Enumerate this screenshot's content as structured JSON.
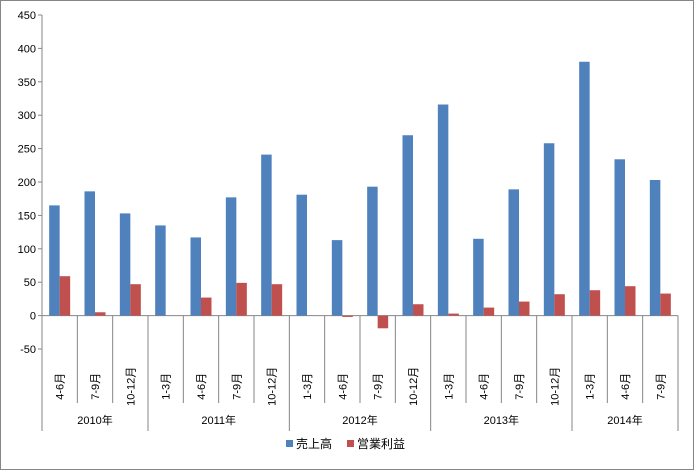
{
  "chart_data": {
    "type": "bar",
    "periods": [
      {
        "year": "2010年",
        "quarters": [
          "4-6月",
          "7-9月",
          "10-12月"
        ]
      },
      {
        "year": "2011年",
        "quarters": [
          "1-3月",
          "4-6月",
          "7-9月",
          "10-12月"
        ]
      },
      {
        "year": "2012年",
        "quarters": [
          "1-3月",
          "4-6月",
          "7-9月",
          "10-12月"
        ]
      },
      {
        "year": "2013年",
        "quarters": [
          "1-3月",
          "4-6月",
          "7-9月",
          "10-12月"
        ]
      },
      {
        "year": "2014年",
        "quarters": [
          "1-3月",
          "4-6月",
          "7-9月"
        ]
      }
    ],
    "series": [
      {
        "name": "売上高",
        "color": "#4F81BD",
        "values": [
          165,
          186,
          153,
          135,
          117,
          177,
          241,
          181,
          113,
          193,
          270,
          316,
          115,
          189,
          258,
          380,
          234,
          203
        ]
      },
      {
        "name": "営業利益",
        "color": "#C0504D",
        "values": [
          59,
          5,
          47,
          0,
          27,
          49,
          47,
          0,
          -2,
          -19,
          17,
          3,
          12,
          21,
          32,
          38,
          44,
          33
        ]
      }
    ],
    "yticks": [
      -50,
      0,
      50,
      100,
      150,
      200,
      250,
      300,
      350,
      400,
      450
    ],
    "ylim": [
      -50,
      450
    ],
    "grid": false,
    "legend": "bottom"
  }
}
